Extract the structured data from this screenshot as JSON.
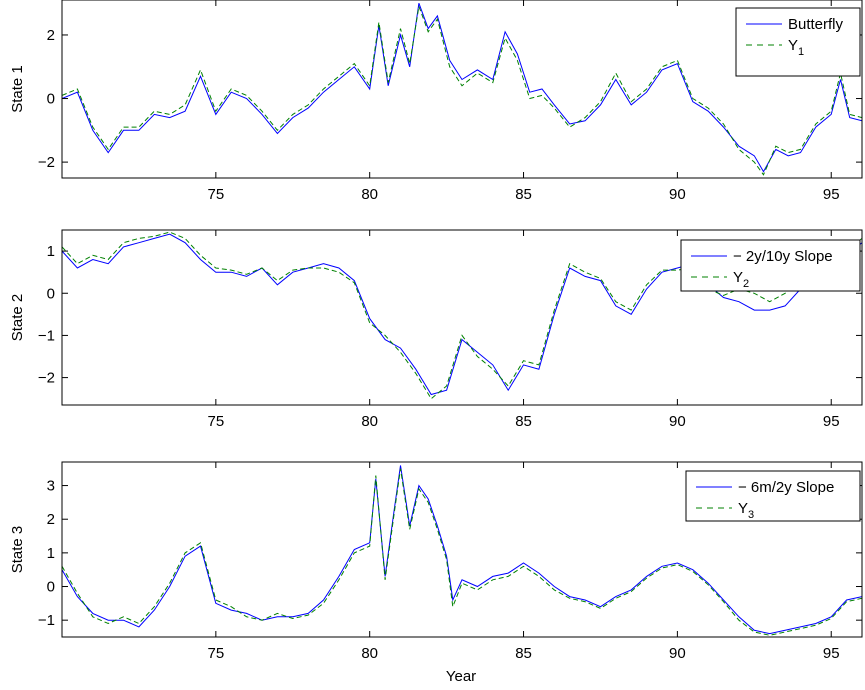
{
  "figure": {
    "xlabel": "Year"
  },
  "colors": {
    "model": "#0000ff",
    "factor": "#008000",
    "axis": "#000000"
  },
  "chart_data": [
    {
      "type": "line",
      "ylabel": "State 1",
      "xlim": [
        70,
        96
      ],
      "ylim": [
        -2.5,
        3.1
      ],
      "xticks": [
        75,
        80,
        85,
        90,
        95
      ],
      "yticks": [
        -2,
        0,
        2
      ],
      "ytick_labels": [
        "−2",
        "0",
        "2"
      ],
      "legend_position": "top-right",
      "series": [
        {
          "name": "Butterfly",
          "style": "solid",
          "x": [
            70.0,
            70.5,
            71.0,
            71.5,
            72.0,
            72.5,
            73.0,
            73.5,
            74.0,
            74.5,
            75.0,
            75.5,
            76.0,
            76.5,
            77.0,
            77.5,
            78.0,
            78.5,
            79.0,
            79.5,
            80.0,
            80.3,
            80.6,
            81.0,
            81.3,
            81.6,
            81.9,
            82.2,
            82.6,
            83.0,
            83.5,
            84.0,
            84.4,
            84.8,
            85.2,
            85.6,
            86.0,
            86.5,
            87.0,
            87.5,
            88.0,
            88.5,
            89.0,
            89.5,
            90.0,
            90.5,
            91.0,
            91.5,
            92.0,
            92.5,
            92.8,
            93.2,
            93.6,
            94.0,
            94.5,
            95.0,
            95.3,
            95.6,
            96.0
          ],
          "y": [
            0.0,
            0.2,
            -1.0,
            -1.7,
            -1.0,
            -1.0,
            -0.5,
            -0.6,
            -0.4,
            0.7,
            -0.5,
            0.2,
            0.0,
            -0.5,
            -1.1,
            -0.6,
            -0.3,
            0.2,
            0.6,
            1.0,
            0.3,
            2.3,
            0.4,
            2.0,
            1.0,
            3.0,
            2.2,
            2.6,
            1.2,
            0.6,
            0.9,
            0.6,
            2.1,
            1.4,
            0.2,
            0.3,
            -0.2,
            -0.8,
            -0.7,
            -0.2,
            0.6,
            -0.2,
            0.2,
            0.9,
            1.1,
            -0.1,
            -0.4,
            -0.9,
            -1.5,
            -1.8,
            -2.3,
            -1.6,
            -1.8,
            -1.7,
            -0.9,
            -0.5,
            0.6,
            -0.6,
            -0.7
          ]
        },
        {
          "name": "Y1",
          "style": "dashed",
          "x": [
            70.0,
            70.5,
            71.0,
            71.5,
            72.0,
            72.5,
            73.0,
            73.5,
            74.0,
            74.5,
            75.0,
            75.5,
            76.0,
            76.5,
            77.0,
            77.5,
            78.0,
            78.5,
            79.0,
            79.5,
            80.0,
            80.3,
            80.6,
            81.0,
            81.3,
            81.6,
            81.9,
            82.2,
            82.6,
            83.0,
            83.5,
            84.0,
            84.4,
            84.8,
            85.2,
            85.6,
            86.0,
            86.5,
            87.0,
            87.5,
            88.0,
            88.5,
            89.0,
            89.5,
            90.0,
            90.5,
            91.0,
            91.5,
            92.0,
            92.5,
            92.8,
            93.2,
            93.6,
            94.0,
            94.5,
            95.0,
            95.3,
            95.6,
            96.0
          ],
          "y": [
            0.1,
            0.3,
            -0.9,
            -1.6,
            -0.9,
            -0.9,
            -0.4,
            -0.5,
            -0.2,
            0.9,
            -0.4,
            0.3,
            0.1,
            -0.4,
            -1.0,
            -0.5,
            -0.2,
            0.3,
            0.7,
            1.1,
            0.4,
            2.4,
            0.5,
            2.2,
            1.1,
            2.9,
            2.1,
            2.5,
            1.0,
            0.4,
            0.8,
            0.5,
            1.9,
            1.2,
            0.0,
            0.1,
            -0.3,
            -0.9,
            -0.6,
            -0.1,
            0.8,
            -0.1,
            0.3,
            1.0,
            1.2,
            0.0,
            -0.3,
            -0.8,
            -1.6,
            -2.0,
            -2.4,
            -1.5,
            -1.7,
            -1.6,
            -0.8,
            -0.4,
            0.8,
            -0.5,
            -0.6
          ]
        }
      ],
      "legend": [
        {
          "text": "Butterfly",
          "sub": ""
        },
        {
          "text": "Y",
          "sub": "1"
        }
      ]
    },
    {
      "type": "line",
      "ylabel": "State 2",
      "xlim": [
        70,
        96
      ],
      "ylim": [
        -2.65,
        1.5
      ],
      "xticks": [
        75,
        80,
        85,
        90,
        95
      ],
      "yticks": [
        -2,
        -1,
        0,
        1
      ],
      "ytick_labels": [
        "−2",
        "−1",
        "0",
        "1"
      ],
      "legend_position": "top-right",
      "series": [
        {
          "name": "− 2y/10y Slope",
          "style": "solid",
          "x": [
            70.0,
            70.5,
            71.0,
            71.5,
            72.0,
            72.5,
            73.0,
            73.5,
            74.0,
            74.5,
            75.0,
            75.5,
            76.0,
            76.5,
            77.0,
            77.5,
            78.0,
            78.5,
            79.0,
            79.5,
            80.0,
            80.5,
            81.0,
            81.5,
            82.0,
            82.5,
            83.0,
            83.5,
            84.0,
            84.5,
            85.0,
            85.5,
            86.0,
            86.5,
            87.0,
            87.5,
            88.0,
            88.5,
            89.0,
            89.5,
            90.0,
            90.5,
            91.0,
            91.5,
            92.0,
            92.5,
            93.0,
            93.5,
            94.0,
            94.5,
            95.0,
            95.5,
            96.0
          ],
          "y": [
            1.0,
            0.6,
            0.8,
            0.7,
            1.1,
            1.2,
            1.3,
            1.4,
            1.2,
            0.8,
            0.5,
            0.5,
            0.4,
            0.6,
            0.2,
            0.5,
            0.6,
            0.7,
            0.6,
            0.3,
            -0.6,
            -1.1,
            -1.3,
            -1.8,
            -2.4,
            -2.3,
            -1.1,
            -1.4,
            -1.7,
            -2.3,
            -1.7,
            -1.8,
            -0.5,
            0.6,
            0.4,
            0.3,
            -0.3,
            -0.5,
            0.1,
            0.5,
            0.6,
            0.7,
            0.2,
            -0.1,
            -0.2,
            -0.4,
            -0.4,
            -0.3,
            0.1,
            0.3,
            0.6,
            0.9,
            1.2
          ]
        },
        {
          "name": "Y2",
          "style": "dashed",
          "x": [
            70.0,
            70.5,
            71.0,
            71.5,
            72.0,
            72.5,
            73.0,
            73.5,
            74.0,
            74.5,
            75.0,
            75.5,
            76.0,
            76.5,
            77.0,
            77.5,
            78.0,
            78.5,
            79.0,
            79.5,
            80.0,
            80.5,
            81.0,
            81.5,
            82.0,
            82.5,
            83.0,
            83.5,
            84.0,
            84.5,
            85.0,
            85.5,
            86.0,
            86.5,
            87.0,
            87.5,
            88.0,
            88.5,
            89.0,
            89.5,
            90.0,
            90.5,
            91.0,
            91.5,
            92.0,
            92.5,
            93.0,
            93.5,
            94.0,
            94.5,
            95.0,
            95.5,
            96.0
          ],
          "y": [
            1.1,
            0.7,
            0.9,
            0.8,
            1.2,
            1.3,
            1.35,
            1.45,
            1.3,
            0.9,
            0.6,
            0.55,
            0.45,
            0.6,
            0.3,
            0.55,
            0.6,
            0.6,
            0.5,
            0.25,
            -0.7,
            -1.0,
            -1.4,
            -1.9,
            -2.5,
            -2.2,
            -1.0,
            -1.5,
            -1.8,
            -2.2,
            -1.6,
            -1.7,
            -0.4,
            0.7,
            0.5,
            0.35,
            -0.2,
            -0.4,
            0.2,
            0.55,
            0.55,
            0.6,
            0.1,
            -0.05,
            0.1,
            0.0,
            -0.2,
            0.0,
            0.3,
            0.5,
            0.8,
            1.0,
            1.3
          ]
        }
      ],
      "legend": [
        {
          "text": "− 2y/10y Slope",
          "sub": ""
        },
        {
          "text": "Y",
          "sub": "2"
        }
      ]
    },
    {
      "type": "line",
      "ylabel": "State 3",
      "xlim": [
        70,
        96
      ],
      "ylim": [
        -1.5,
        3.7
      ],
      "xticks": [
        75,
        80,
        85,
        90,
        95
      ],
      "yticks": [
        -1,
        0,
        1,
        2,
        3
      ],
      "ytick_labels": [
        "−1",
        "0",
        "1",
        "2",
        "3"
      ],
      "legend_position": "top-right",
      "series": [
        {
          "name": "− 6m/2y Slope",
          "style": "solid",
          "x": [
            70.0,
            70.5,
            71.0,
            71.5,
            72.0,
            72.5,
            73.0,
            73.5,
            74.0,
            74.5,
            75.0,
            75.5,
            76.0,
            76.5,
            77.0,
            77.5,
            78.0,
            78.5,
            79.0,
            79.5,
            80.0,
            80.2,
            80.5,
            80.8,
            81.0,
            81.3,
            81.6,
            81.9,
            82.2,
            82.5,
            82.7,
            83.0,
            83.5,
            84.0,
            84.5,
            85.0,
            85.5,
            86.0,
            86.5,
            87.0,
            87.5,
            88.0,
            88.5,
            89.0,
            89.5,
            90.0,
            90.5,
            91.0,
            91.5,
            92.0,
            92.5,
            93.0,
            93.5,
            94.0,
            94.5,
            95.0,
            95.5,
            96.0
          ],
          "y": [
            0.5,
            -0.3,
            -0.8,
            -1.0,
            -1.0,
            -1.2,
            -0.7,
            0.0,
            0.9,
            1.2,
            -0.5,
            -0.7,
            -0.8,
            -1.0,
            -0.9,
            -0.9,
            -0.8,
            -0.4,
            0.3,
            1.1,
            1.3,
            3.2,
            0.3,
            2.3,
            3.6,
            1.8,
            3.0,
            2.6,
            1.8,
            0.9,
            -0.4,
            0.2,
            0.0,
            0.3,
            0.4,
            0.7,
            0.4,
            0.0,
            -0.3,
            -0.4,
            -0.6,
            -0.3,
            -0.1,
            0.3,
            0.6,
            0.7,
            0.5,
            0.1,
            -0.4,
            -0.9,
            -1.3,
            -1.4,
            -1.3,
            -1.2,
            -1.1,
            -0.9,
            -0.4,
            -0.3
          ]
        },
        {
          "name": "Y3",
          "style": "dashed",
          "x": [
            70.0,
            70.5,
            71.0,
            71.5,
            72.0,
            72.5,
            73.0,
            73.5,
            74.0,
            74.5,
            75.0,
            75.5,
            76.0,
            76.5,
            77.0,
            77.5,
            78.0,
            78.5,
            79.0,
            79.5,
            80.0,
            80.2,
            80.5,
            80.8,
            81.0,
            81.3,
            81.6,
            81.9,
            82.2,
            82.5,
            82.7,
            83.0,
            83.5,
            84.0,
            84.5,
            85.0,
            85.5,
            86.0,
            86.5,
            87.0,
            87.5,
            88.0,
            88.5,
            89.0,
            89.5,
            90.0,
            90.5,
            91.0,
            91.5,
            92.0,
            92.5,
            93.0,
            93.5,
            94.0,
            94.5,
            95.0,
            95.5,
            96.0
          ],
          "y": [
            0.6,
            -0.2,
            -0.9,
            -1.1,
            -0.9,
            -1.1,
            -0.6,
            0.1,
            1.0,
            1.3,
            -0.4,
            -0.6,
            -0.9,
            -1.0,
            -0.8,
            -0.95,
            -0.85,
            -0.5,
            0.2,
            1.0,
            1.2,
            3.3,
            0.2,
            2.2,
            3.5,
            1.7,
            2.9,
            2.5,
            1.7,
            0.8,
            -0.6,
            0.1,
            -0.1,
            0.2,
            0.3,
            0.6,
            0.3,
            -0.1,
            -0.35,
            -0.45,
            -0.65,
            -0.35,
            -0.15,
            0.25,
            0.55,
            0.65,
            0.45,
            0.05,
            -0.45,
            -1.0,
            -1.35,
            -1.45,
            -1.35,
            -1.25,
            -1.15,
            -0.95,
            -0.45,
            -0.35
          ]
        }
      ],
      "legend": [
        {
          "text": "− 6m/2y Slope",
          "sub": ""
        },
        {
          "text": "Y",
          "sub": "3"
        }
      ]
    }
  ]
}
